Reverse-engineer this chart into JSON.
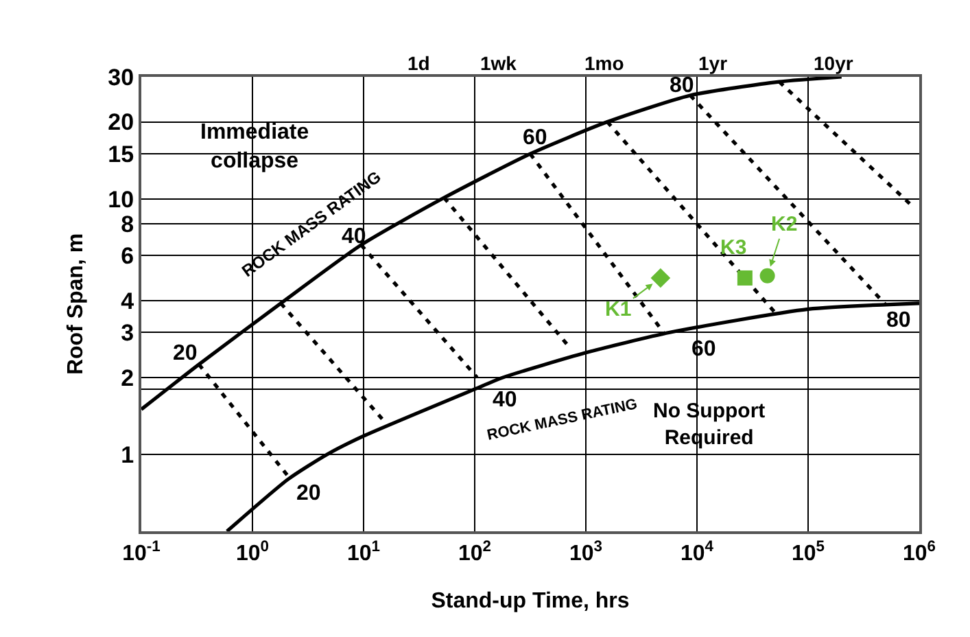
{
  "chart_data": {
    "type": "line",
    "xlabel": "Stand-up Time, hrs",
    "ylabel": "Roof Span, m",
    "log": "xy",
    "xlim": [
      0.1,
      1000000
    ],
    "xticks": [
      {
        "value": 0.1,
        "label": "10$^{-1}$"
      },
      {
        "value": 1,
        "label": "10$^{0}$"
      },
      {
        "value": 10,
        "label": "10$^{1}$"
      },
      {
        "value": 100,
        "label": "10$^{2}$"
      },
      {
        "value": 1000,
        "label": "10$^{3}$"
      },
      {
        "value": 10000,
        "label": "10$^{4}$"
      },
      {
        "value": 100000,
        "label": "10$^{5}$"
      },
      {
        "value": 1000000,
        "label": "10$^{6}$"
      }
    ],
    "ylim": [
      0.5,
      30
    ],
    "yticks": [
      1,
      2,
      3,
      4,
      6,
      8,
      10,
      15,
      20,
      30
    ],
    "grid": true,
    "legend": false,
    "series": [
      {
        "color": "#000000",
        "line_style": "solid",
        "x": [
          0.1,
          0.33,
          1.8,
          9.5,
          53,
          316,
          1560,
          8700,
          55000,
          200000
        ],
        "values": [
          1.5,
          2.25,
          3.9,
          6.6,
          10.1,
          15,
          20,
          25.4,
          28.7,
          30
        ]
      },
      {
        "color": "#000000",
        "line_style": "solid",
        "x": [
          0.59,
          2.1,
          4.7,
          10,
          100,
          180,
          1000,
          5700,
          100000,
          1000000
        ],
        "values": [
          0.5,
          0.8,
          1.0,
          1.18,
          1.8,
          2.0,
          2.5,
          3.0,
          3.7,
          3.9
        ]
      },
      {
        "color": "#000000",
        "line_style": "dashed",
        "x": [
          0.33,
          2.1
        ],
        "values": [
          2.25,
          0.82
        ]
      },
      {
        "color": "#000000",
        "line_style": "dashed",
        "x": [
          1.8,
          15.5
        ],
        "values": [
          3.9,
          1.34
        ]
      },
      {
        "color": "#000000",
        "line_style": "dashed",
        "x": [
          9.5,
          105
        ],
        "values": [
          6.6,
          2.0
        ]
      },
      {
        "color": "#000000",
        "line_style": "dashed",
        "x": [
          53,
          700
        ],
        "values": [
          10.1,
          2.65
        ]
      },
      {
        "color": "#000000",
        "line_style": "dashed",
        "x": [
          316,
          5000
        ],
        "values": [
          15,
          3.0
        ]
      },
      {
        "color": "#000000",
        "line_style": "dashed",
        "x": [
          1560,
          50000
        ],
        "values": [
          20,
          3.6
        ]
      },
      {
        "color": "#000000",
        "line_style": "dashed",
        "x": [
          8700,
          500000
        ],
        "values": [
          25.4,
          3.85
        ]
      },
      {
        "color": "#000000",
        "line_style": "dashed",
        "x": [
          55000,
          860000
        ],
        "values": [
          28.7,
          9.4
        ]
      },
      {
        "type": "scatter",
        "name": "K1",
        "color": "#66bb33",
        "marker": "diamond",
        "x": [
          4700
        ],
        "values": [
          4.9
        ]
      },
      {
        "type": "scatter",
        "name": "K2",
        "color": "#66bb33",
        "marker": "circle",
        "x": [
          43000
        ],
        "values": [
          5.0
        ]
      },
      {
        "type": "scatter",
        "name": "K3",
        "color": "#66bb33",
        "marker": "square",
        "x": [
          27000
        ],
        "values": [
          4.9
        ]
      }
    ],
    "ref_lines": [
      {
        "axis": "y",
        "value": 1.8,
        "color": "#000000"
      }
    ],
    "annotations": [
      "Immediate\ncollapse",
      "No Support\nRequired",
      "ROCK MASS RATING",
      "ROCK MASS RATING",
      "20",
      "40",
      "60",
      "80",
      "20",
      "40",
      "60",
      "80",
      "1d",
      "1wk",
      "1mo",
      "1yr",
      "10yr"
    ]
  }
}
